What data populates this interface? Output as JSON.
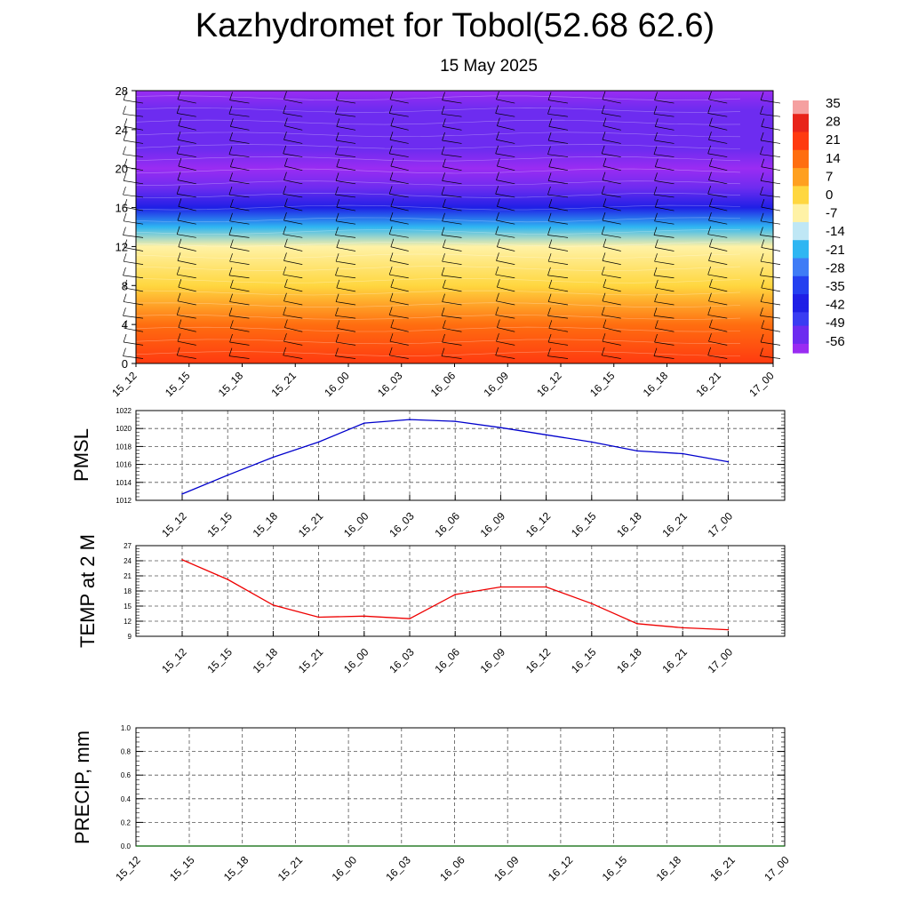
{
  "title": "Kazhydromet for Tobol(52.68 62.6)",
  "subtitle": "15 May 2025",
  "time_labels": [
    "15_12",
    "15_15",
    "15_18",
    "15_21",
    "16_00",
    "16_03",
    "16_06",
    "16_09",
    "16_12",
    "16_15",
    "16_18",
    "16_21",
    "17_00"
  ],
  "colors": {
    "pmsl_line": "#0000cc",
    "temp_line": "#ee0000",
    "precip_line": "#006400",
    "wind_barb": "#000000",
    "colormap": [
      "#9a2cf2",
      "#6d2cf0",
      "#3a3cf2",
      "#1f1fe6",
      "#2440f0",
      "#3f7cf6",
      "#2fb6f2",
      "#bfe7f5",
      "#fff2a6",
      "#ffd740",
      "#ffa020",
      "#ff6e10",
      "#ff3a10",
      "#e8241a",
      "#f5a0a0"
    ]
  },
  "chart_data": [
    {
      "type": "heatmap",
      "name": "vertical-cross-section",
      "x": [
        "15_12",
        "15_15",
        "15_18",
        "15_21",
        "16_00",
        "16_03",
        "16_06",
        "16_09",
        "16_12",
        "16_15",
        "16_18",
        "16_21",
        "17_00"
      ],
      "ylim": [
        0,
        28
      ],
      "yticks": [
        0,
        4,
        8,
        12,
        16,
        20,
        24,
        28
      ],
      "colorbar": {
        "tick_labels": [
          "35",
          "28",
          "21",
          "14",
          "7",
          "0",
          "-7",
          "-14",
          "-21",
          "-28",
          "-35",
          "-42",
          "-49",
          "-56"
        ],
        "range": [
          -63,
          42
        ]
      },
      "temperature_profile": [
        {
          "level": 0,
          "value": 24
        },
        {
          "level": 4,
          "value": 18
        },
        {
          "level": 8,
          "value": 8
        },
        {
          "level": 12,
          "value": -4
        },
        {
          "level": 14,
          "value": -20
        },
        {
          "level": 16,
          "value": -40
        },
        {
          "level": 18,
          "value": -55
        },
        {
          "level": 20,
          "value": -60
        },
        {
          "level": 22,
          "value": -56
        },
        {
          "level": 24,
          "value": -52
        },
        {
          "level": 26,
          "value": -58
        },
        {
          "level": 28,
          "value": -63
        }
      ]
    },
    {
      "type": "line",
      "ylabel": "PMSL",
      "ylim": [
        1012,
        1022
      ],
      "yticks": [
        1012,
        1014,
        1016,
        1018,
        1020,
        1022
      ],
      "categories": [
        "15_12",
        "15_15",
        "15_18",
        "15_21",
        "16_00",
        "16_03",
        "16_06",
        "16_09",
        "16_12",
        "16_15",
        "16_18",
        "16_21",
        "17_00"
      ],
      "values": [
        1012.7,
        1014.8,
        1016.8,
        1018.5,
        1020.6,
        1021.0,
        1020.8,
        1020.1,
        1019.3,
        1018.5,
        1017.5,
        1017.2,
        1016.3
      ]
    },
    {
      "type": "line",
      "ylabel": "TEMP at 2 M",
      "ylim": [
        9,
        27
      ],
      "yticks": [
        9,
        12,
        15,
        18,
        21,
        24,
        27
      ],
      "categories": [
        "15_12",
        "15_15",
        "15_18",
        "15_21",
        "16_00",
        "16_03",
        "16_06",
        "16_09",
        "16_12",
        "16_15",
        "16_18",
        "16_21",
        "17_00"
      ],
      "values": [
        24.2,
        20.3,
        15.2,
        12.8,
        13.0,
        12.5,
        17.3,
        18.8,
        18.8,
        15.5,
        11.5,
        10.7,
        10.3
      ]
    },
    {
      "type": "line",
      "ylabel": "PRECIP, mm",
      "ylim": [
        0,
        1
      ],
      "yticks": [
        "0.0",
        "0.2",
        "0.4",
        "0.6",
        "0.8",
        "1.0"
      ],
      "categories": [
        "15_12",
        "15_15",
        "15_18",
        "15_21",
        "16_00",
        "16_03",
        "16_06",
        "16_09",
        "16_12",
        "16_15",
        "16_18",
        "16_21",
        "17_00"
      ],
      "values": [
        0,
        0,
        0,
        0,
        0,
        0,
        0,
        0,
        0,
        0,
        0,
        0,
        0
      ]
    }
  ]
}
